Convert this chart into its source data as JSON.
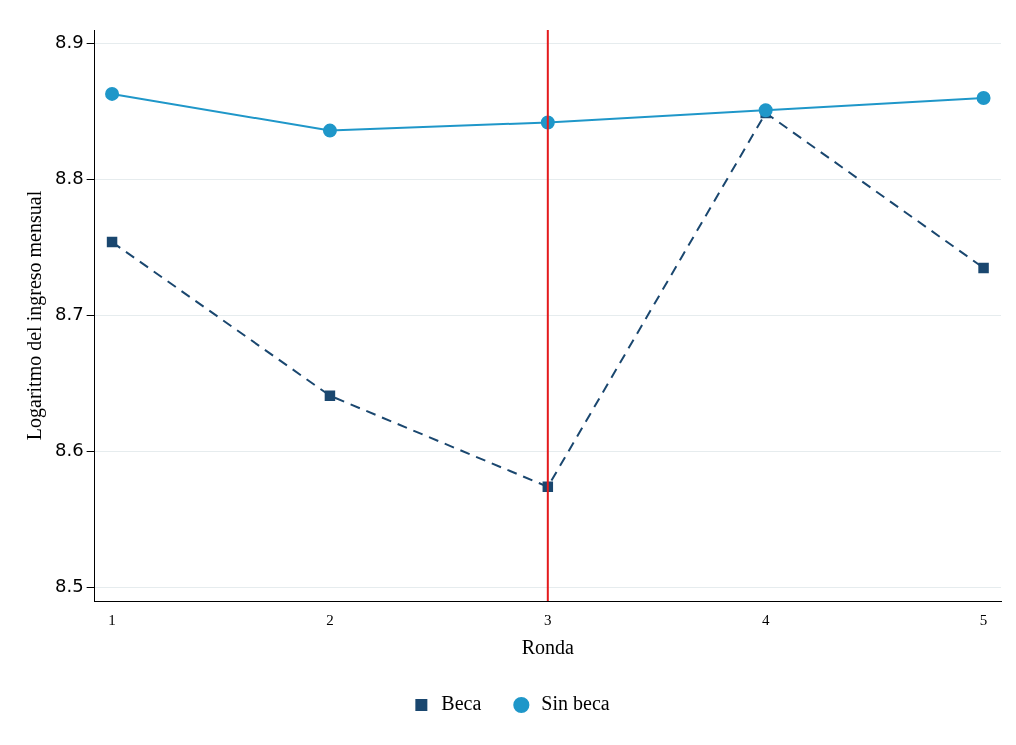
{
  "chart_data": {
    "type": "line",
    "xlabel": "Ronda",
    "ylabel": "Logaritmo del ingreso mensual",
    "x": [
      1,
      2,
      3,
      4,
      5
    ],
    "xlim": [
      0.92,
      5.08
    ],
    "xticks": [
      1,
      2,
      3,
      4,
      5
    ],
    "ylim": [
      8.49,
      8.91
    ],
    "yticks": [
      8.5,
      8.6,
      8.7,
      8.8,
      8.9
    ],
    "grid": "y",
    "legend": "bottom",
    "series": [
      {
        "name": "Beca",
        "color": "#1a476f",
        "values": [
          8.754,
          8.641,
          8.574,
          8.849,
          8.735
        ],
        "marker": "square",
        "line_style": "dashed"
      },
      {
        "name": "Sin beca",
        "color": "#1f97c9",
        "values": [
          8.863,
          8.836,
          8.842,
          8.851,
          8.86
        ],
        "marker": "circle",
        "line_style": "solid"
      }
    ],
    "ref_lines": [
      {
        "axis": "x",
        "value": 3,
        "color": "#e41a1c",
        "line_style": "solid"
      }
    ]
  }
}
